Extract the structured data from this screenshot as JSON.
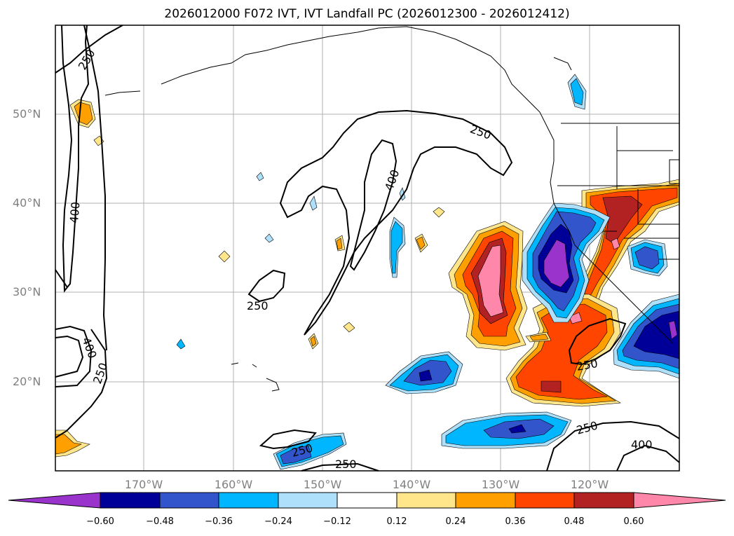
{
  "title": "2026012000 F072 IVT, IVT Landfall PC (2026012300 - 2026012412)",
  "lat_labels": [
    "50°N",
    "40°N",
    "30°N",
    "20°N"
  ],
  "lon_labels": [
    "170°W",
    "160°W",
    "150°W",
    "140°W",
    "130°W",
    "120°W"
  ],
  "contour_labels": [
    "250",
    "400",
    "250",
    "400",
    "250",
    "400",
    "250",
    "250",
    "250",
    "250",
    "250",
    "400"
  ],
  "colorbar": {
    "ticks": [
      "−0.60",
      "−0.48",
      "−0.36",
      "−0.24",
      "−0.12",
      "0.12",
      "0.24",
      "0.36",
      "0.48",
      "0.60"
    ],
    "colors": [
      "#9933cc",
      "#000099",
      "#3355cc",
      "#00b7ff",
      "#aee0fb",
      "#ffffff",
      "#ffe68a",
      "#ff9f00",
      "#ff4500",
      "#b22222",
      "#ff88aa"
    ]
  },
  "colors": {
    "purple": "#9933cc",
    "navy": "#000099",
    "blue": "#3355cc",
    "cyan": "#00b7ff",
    "light_blue": "#aee0fb",
    "yellow": "#ffe68a",
    "orange": "#ff9f00",
    "red_orange": "#ff4500",
    "dark_red": "#b22222",
    "pink": "#ff88aa"
  }
}
